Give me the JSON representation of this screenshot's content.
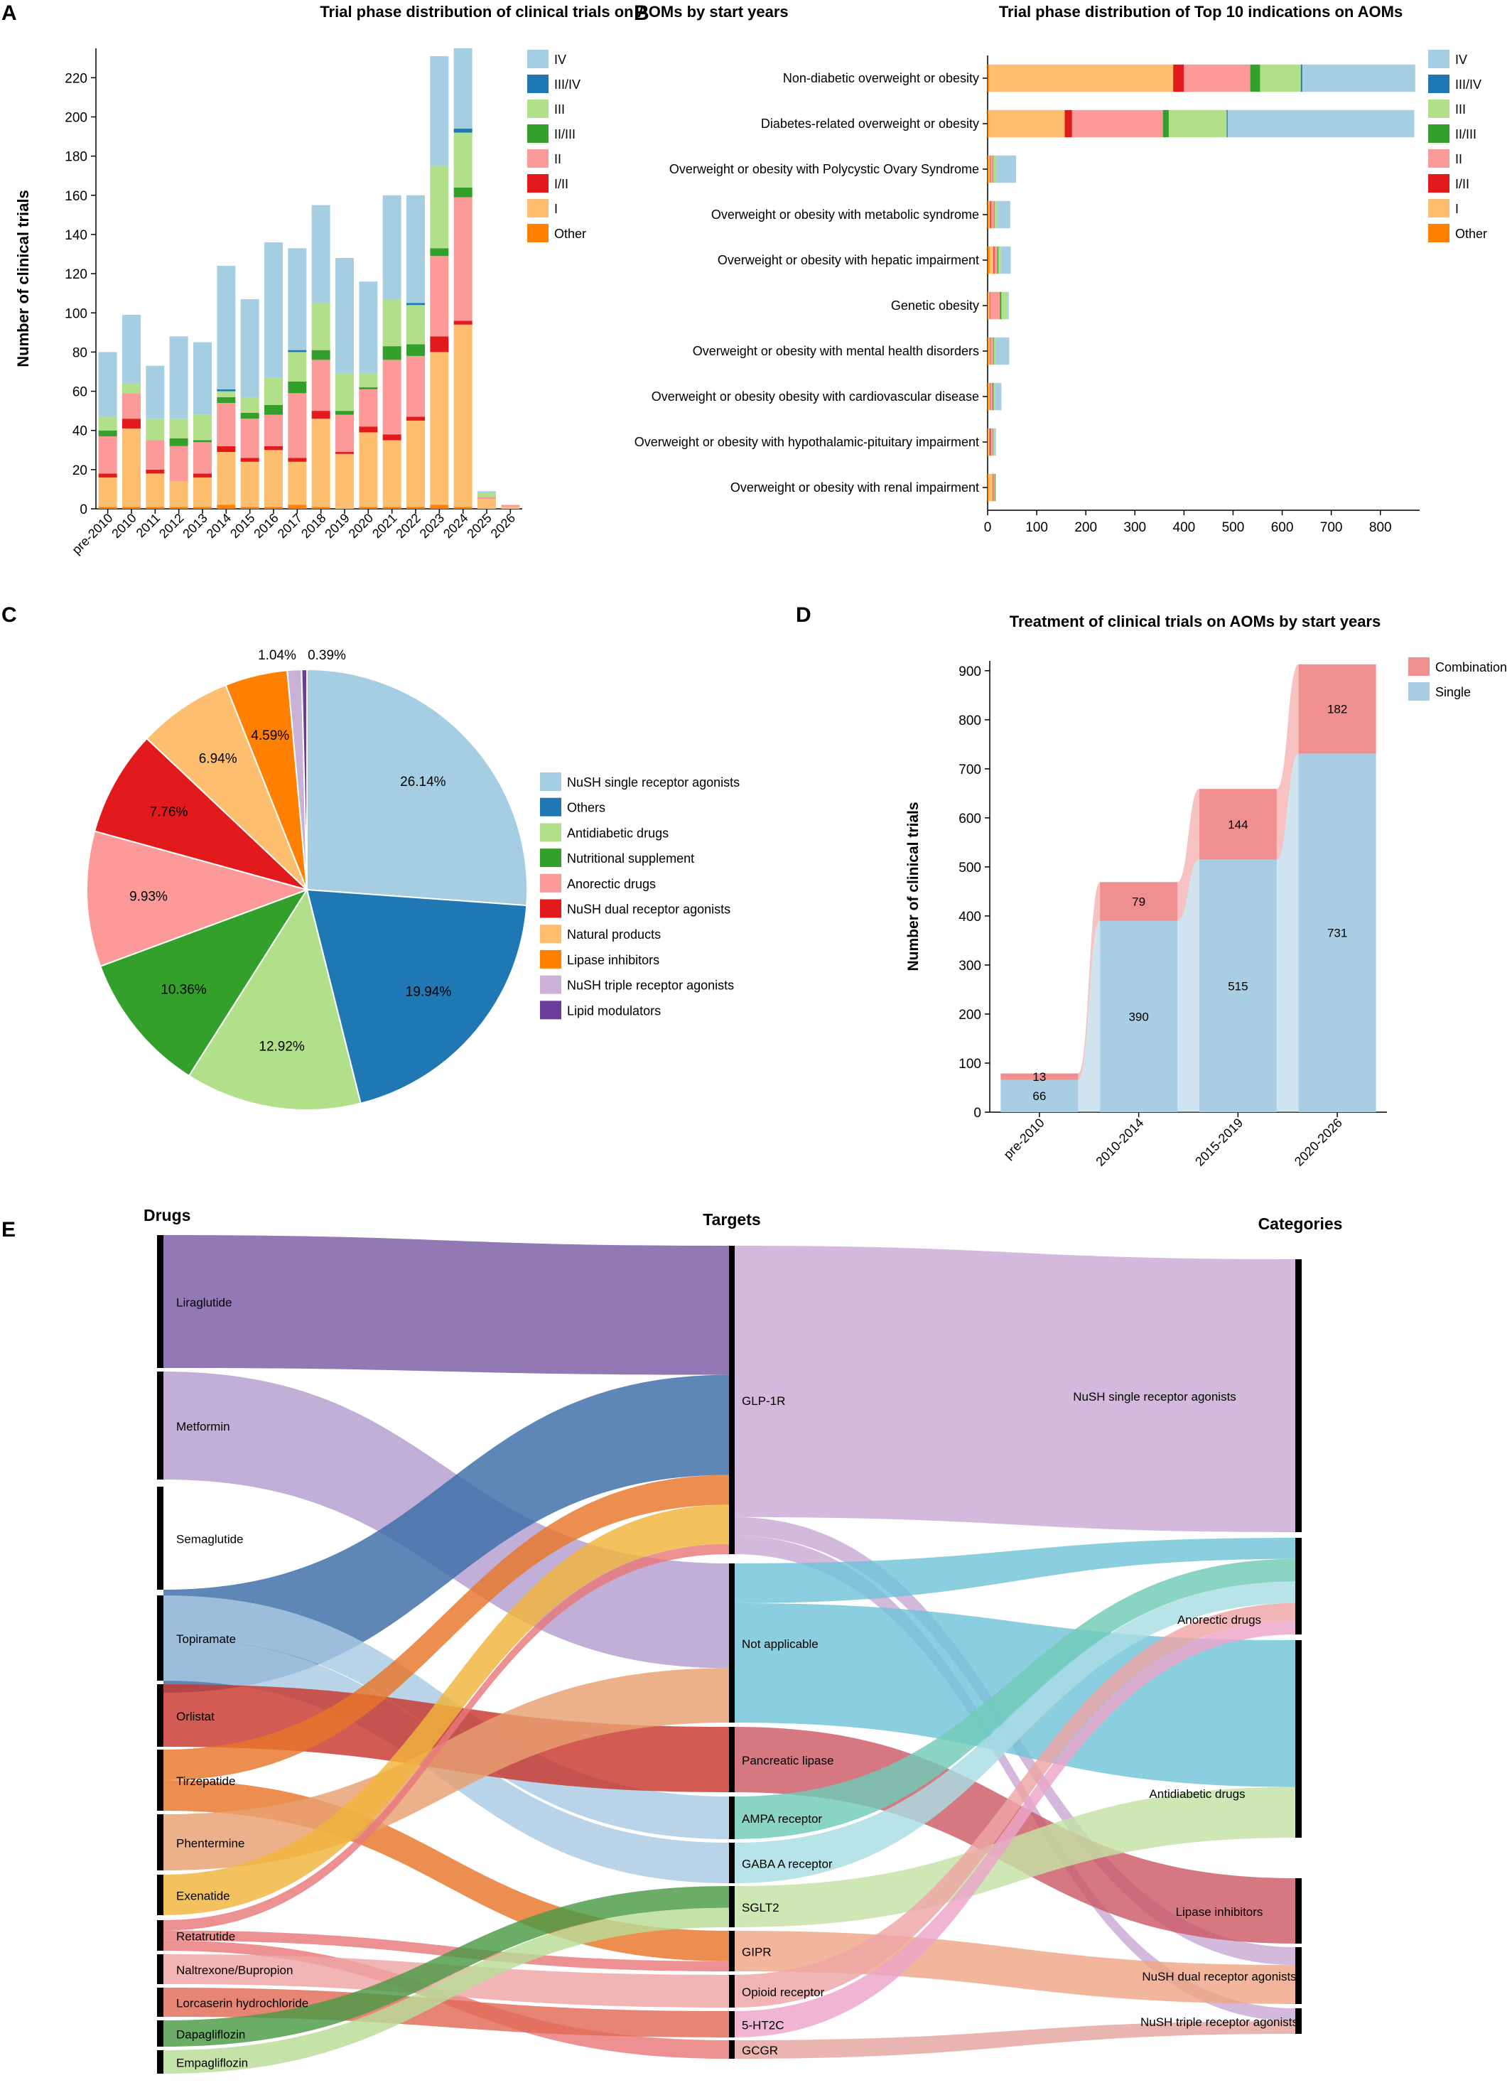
{
  "panels": {
    "a": "A",
    "b": "B",
    "c": "C",
    "d": "D",
    "e": "E"
  },
  "colors": {
    "IV": "#a6cee3",
    "III/IV": "#1f78b4",
    "III": "#b2df8a",
    "II/III": "#33a02c",
    "II": "#fb9a99",
    "I/II": "#e31a1c",
    "I": "#fdbf6f",
    "Other": "#ff7f00",
    "Combination": "#f08f8f",
    "Single": "#a9cde3"
  },
  "chart_data": [
    {
      "id": "A",
      "type": "bar",
      "stacked": true,
      "title": "Trial phase distribution of clinical trials on AOMs by start years",
      "xlabel": "",
      "ylabel": "Number of clinical trials",
      "ylim": [
        0,
        235
      ],
      "yticks": [
        0,
        20,
        40,
        60,
        80,
        100,
        120,
        140,
        160,
        180,
        200,
        220
      ],
      "legend_position": "right",
      "categories": [
        "pre-2010",
        "2010",
        "2011",
        "2012",
        "2013",
        "2014",
        "2015",
        "2016",
        "2017",
        "2018",
        "2019",
        "2020",
        "2021",
        "2022",
        "2023",
        "2024",
        "2025",
        "2026"
      ],
      "series": [
        {
          "name": "Other",
          "values": [
            1,
            1,
            1,
            1,
            1,
            2,
            1,
            1,
            2,
            1,
            0,
            1,
            1,
            1,
            2,
            1,
            0,
            0
          ]
        },
        {
          "name": "I",
          "values": [
            15,
            40,
            17,
            13,
            15,
            27,
            23,
            29,
            22,
            45,
            28,
            38,
            34,
            44,
            78,
            93,
            5,
            1
          ]
        },
        {
          "name": "I/II",
          "values": [
            2,
            5,
            2,
            0,
            2,
            3,
            2,
            2,
            2,
            4,
            1,
            3,
            3,
            2,
            8,
            2,
            0,
            0
          ]
        },
        {
          "name": "II",
          "values": [
            19,
            13,
            15,
            18,
            16,
            22,
            20,
            16,
            33,
            26,
            19,
            19,
            38,
            31,
            41,
            63,
            1,
            1
          ]
        },
        {
          "name": "II/III",
          "values": [
            3,
            0,
            0,
            4,
            1,
            3,
            3,
            5,
            6,
            5,
            2,
            1,
            7,
            6,
            4,
            5,
            0,
            0
          ]
        },
        {
          "name": "III",
          "values": [
            7,
            5,
            11,
            10,
            13,
            3,
            8,
            14,
            15,
            24,
            19,
            7,
            24,
            20,
            42,
            28,
            2,
            0
          ]
        },
        {
          "name": "III/IV",
          "values": [
            0,
            0,
            0,
            0,
            0,
            1,
            0,
            0,
            1,
            0,
            0,
            0,
            0,
            1,
            0,
            2,
            0,
            0
          ]
        },
        {
          "name": "IV",
          "values": [
            33,
            35,
            27,
            42,
            37,
            63,
            50,
            69,
            52,
            50,
            59,
            47,
            53,
            55,
            56,
            41,
            1,
            0
          ]
        }
      ]
    },
    {
      "id": "B",
      "type": "bar",
      "orientation": "horizontal",
      "stacked": true,
      "title": "Trial phase distribution of Top 10 indications on AOMs",
      "xlim": [
        0,
        880
      ],
      "xticks": [
        0,
        100,
        200,
        300,
        400,
        500,
        600,
        700,
        800
      ],
      "legend_position": "right",
      "categories": [
        "Non-diabetic overweight or obesity",
        "Diabetes-related overweight or obesity",
        "Overweight or obesity with Polycystic Ovary Syndrome",
        "Overweight or obesity with metabolic syndrome",
        "Overweight or obesity with hepatic impairment",
        "Genetic obesity",
        "Overweight or obesity with mental health disorders",
        "Overweight or obesity obesity with cardiovascular disease",
        "Overweight or obesity with hypothalamic-pituitary impairment",
        "Overweight or obesity with renal impairment"
      ],
      "series": [
        {
          "name": "Other",
          "values": [
            3,
            2,
            2,
            2,
            4,
            1,
            2,
            2,
            1,
            2
          ]
        },
        {
          "name": "I",
          "values": [
            375,
            155,
            3,
            3,
            8,
            3,
            3,
            3,
            3,
            8
          ]
        },
        {
          "name": "I/II",
          "values": [
            22,
            15,
            1,
            2,
            2,
            1,
            1,
            1,
            2,
            1
          ]
        },
        {
          "name": "II",
          "values": [
            135,
            185,
            5,
            6,
            6,
            20,
            6,
            4,
            5,
            4
          ]
        },
        {
          "name": "II/III",
          "values": [
            20,
            12,
            1,
            1,
            2,
            3,
            1,
            2,
            1,
            1
          ]
        },
        {
          "name": "III",
          "values": [
            83,
            118,
            6,
            5,
            5,
            12,
            4,
            3,
            2,
            1
          ]
        },
        {
          "name": "III/IV",
          "values": [
            3,
            2,
            0,
            0,
            0,
            0,
            0,
            0,
            0,
            0
          ]
        },
        {
          "name": "IV",
          "values": [
            230,
            380,
            40,
            27,
            20,
            3,
            27,
            13,
            3,
            0
          ]
        }
      ]
    },
    {
      "id": "C",
      "type": "pie",
      "legend_position": "right",
      "labels": [
        "NuSH single receptor agonists",
        "Others",
        "Antidiabetic drugs",
        "Nutritional supplement",
        "Anorectic drugs",
        "NuSH dual receptor agonists",
        "Natural products",
        "Lipase inhibitors",
        "NuSH triple receptor agonists",
        "Lipid modulators"
      ],
      "values": [
        26.14,
        19.94,
        12.92,
        10.36,
        9.93,
        7.76,
        6.94,
        4.59,
        1.04,
        0.39
      ],
      "value_labels": [
        "26.14%",
        "19.94%",
        "12.92%",
        "10.36%",
        "9.93%",
        "7.76%",
        "6.94%",
        "4.59%",
        "1.04%",
        "0.39%"
      ],
      "colors": [
        "#a6cee3",
        "#1f78b4",
        "#b2df8a",
        "#33a02c",
        "#fb9a99",
        "#e31a1c",
        "#fdbf6f",
        "#ff7f00",
        "#cab2d6",
        "#6a3d9a"
      ]
    },
    {
      "id": "D",
      "type": "bar",
      "stacked": true,
      "title": "Treatment of clinical trials on AOMs by start years",
      "ylabel": "Number of clinical trials",
      "ylim": [
        0,
        920
      ],
      "yticks": [
        0,
        100,
        200,
        300,
        400,
        500,
        600,
        700,
        800,
        900
      ],
      "legend_position": "top-right",
      "categories": [
        "pre-2010",
        "2010-2014",
        "2015-2019",
        "2020-2026"
      ],
      "series": [
        {
          "name": "Single",
          "values": [
            66,
            390,
            515,
            731
          ]
        },
        {
          "name": "Combination",
          "values": [
            13,
            79,
            144,
            182
          ]
        }
      ]
    },
    {
      "id": "E",
      "type": "sankey",
      "column_titles": [
        "Drugs",
        "Targets",
        "Categories"
      ],
      "drugs": [
        "Liraglutide",
        "Metformin",
        "Semaglutide",
        "Topiramate",
        "Orlistat",
        "Tirzepatide",
        "Phentermine",
        "Exenatide",
        "Retatrutide",
        "Naltrexone/Bupropion",
        "Lorcaserin hydrochloride",
        "Dapagliflozin",
        "Empagliflozin"
      ],
      "targets": [
        "GLP-1R",
        "Not applicable",
        "Pancreatic lipase",
        "AMPA receptor",
        "GABA A receptor",
        "SGLT2",
        "GIPR",
        "Opioid receptor",
        "5-HT2C",
        "GCGR"
      ],
      "categories": [
        "NuSH single receptor agonists",
        "Anorectic drugs",
        "Antidiabetic drugs",
        "Lipase inhibitors",
        "NuSH dual receptor agonists",
        "NuSH triple receptor agonists"
      ]
    }
  ]
}
